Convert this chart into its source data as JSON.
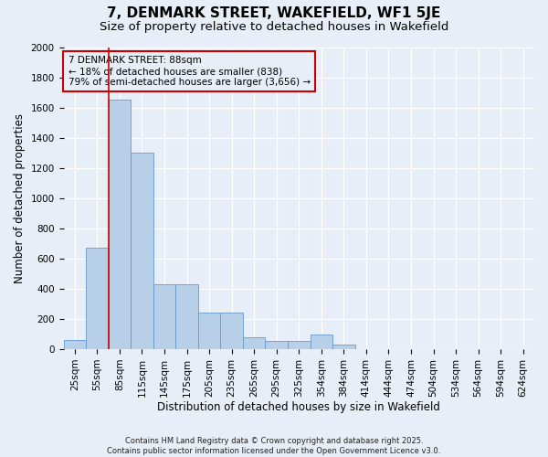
{
  "title": "7, DENMARK STREET, WAKEFIELD, WF1 5JE",
  "subtitle": "Size of property relative to detached houses in Wakefield",
  "xlabel": "Distribution of detached houses by size in Wakefield",
  "ylabel": "Number of detached properties",
  "categories": [
    "25sqm",
    "55sqm",
    "85sqm",
    "115sqm",
    "145sqm",
    "175sqm",
    "205sqm",
    "235sqm",
    "265sqm",
    "295sqm",
    "325sqm",
    "354sqm",
    "384sqm",
    "414sqm",
    "444sqm",
    "474sqm",
    "504sqm",
    "534sqm",
    "564sqm",
    "594sqm",
    "624sqm"
  ],
  "values": [
    60,
    670,
    1650,
    1300,
    430,
    430,
    240,
    240,
    80,
    55,
    55,
    100,
    30,
    0,
    0,
    0,
    0,
    0,
    0,
    0,
    0
  ],
  "bar_color": "#b8cfe8",
  "bar_edge_color": "#6699cc",
  "vline_color": "#cc0000",
  "annotation_text": "7 DENMARK STREET: 88sqm\n← 18% of detached houses are smaller (838)\n79% of semi-detached houses are larger (3,656) →",
  "annotation_box_color": "#cc0000",
  "ylim": [
    0,
    2000
  ],
  "yticks": [
    0,
    200,
    400,
    600,
    800,
    1000,
    1200,
    1400,
    1600,
    1800,
    2000
  ],
  "footer": "Contains HM Land Registry data © Crown copyright and database right 2025.\nContains public sector information licensed under the Open Government Licence v3.0.",
  "bg_color": "#e8eef7",
  "grid_color": "#ffffff",
  "title_fontsize": 11,
  "subtitle_fontsize": 9.5,
  "axis_label_fontsize": 8.5,
  "tick_fontsize": 7.5,
  "footer_fontsize": 6
}
